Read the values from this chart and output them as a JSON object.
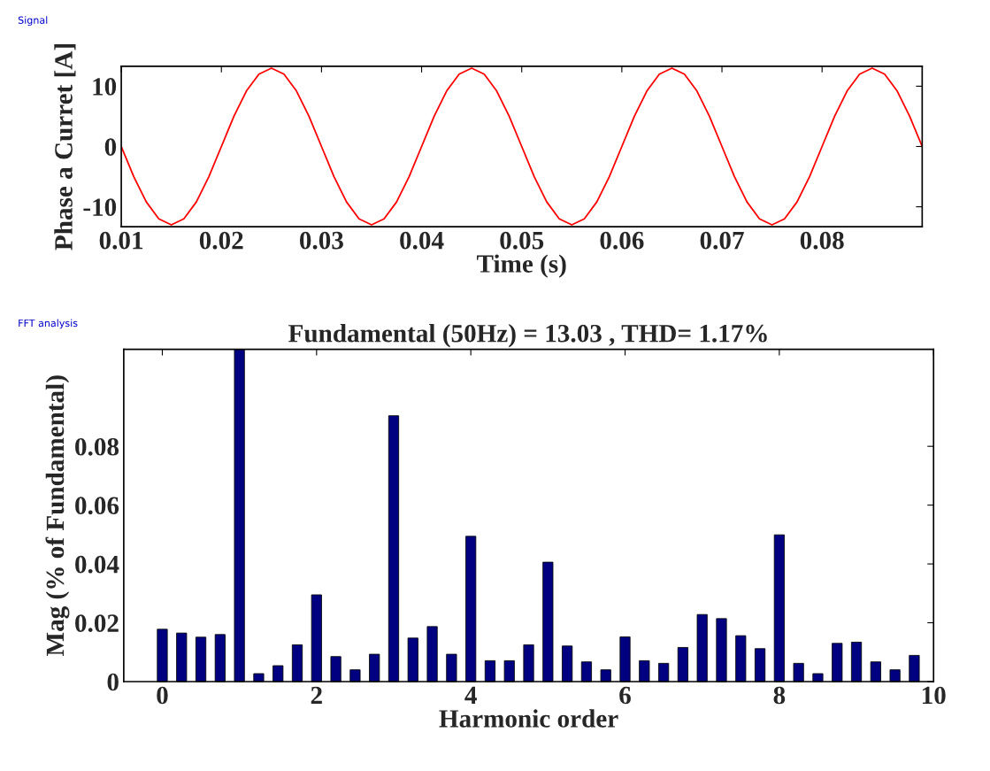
{
  "chart_data": [
    {
      "type": "line",
      "ylabel": "Phase a Curret [A]",
      "xlabel": "Time (s)",
      "annotations": [
        "Signal"
      ],
      "xlim": [
        0.01,
        0.09
      ],
      "xticks": [
        0.01,
        0.02,
        0.03,
        0.04,
        0.05,
        0.06,
        0.07,
        0.08
      ],
      "ylim": [
        -13.3,
        13.3
      ],
      "yticks": [
        -10,
        0,
        10
      ],
      "grid": false,
      "legend": false,
      "series": [
        {
          "color": "#ff0000",
          "x": [
            0.01,
            0.01125,
            0.0125,
            0.01375,
            0.015,
            0.01625,
            0.0175,
            0.01875,
            0.02,
            0.02125,
            0.0225,
            0.02375,
            0.025,
            0.02625,
            0.0275,
            0.02875,
            0.03,
            0.03125,
            0.0325,
            0.03375,
            0.035,
            0.03625,
            0.0375,
            0.03875,
            0.04,
            0.04125,
            0.0425,
            0.04375,
            0.045,
            0.04625,
            0.0475,
            0.04875,
            0.05,
            0.05125,
            0.0525,
            0.05375,
            0.055,
            0.05625,
            0.0575,
            0.05875,
            0.06,
            0.06125,
            0.0625,
            0.06375,
            0.065,
            0.06625,
            0.0675,
            0.06875,
            0.07,
            0.07125,
            0.0725,
            0.07375,
            0.075,
            0.07625,
            0.0775,
            0.07875,
            0.08,
            0.08125,
            0.0825,
            0.08375,
            0.085,
            0.08625,
            0.0875,
            0.08875,
            0.09
          ],
          "values": [
            0,
            -5.0,
            -9.2,
            -12.0,
            -13.0,
            -12.0,
            -9.2,
            -5.0,
            0,
            5.0,
            9.2,
            12.0,
            13.0,
            12.0,
            9.2,
            5.0,
            0,
            -5.0,
            -9.2,
            -12.0,
            -13.0,
            -12.0,
            -9.2,
            -5.0,
            0,
            5.0,
            9.2,
            12.0,
            13.0,
            12.0,
            9.2,
            5.0,
            0,
            -5.0,
            -9.2,
            -12.0,
            -13.0,
            -12.0,
            -9.2,
            -5.0,
            0,
            5.0,
            9.2,
            12.0,
            13.0,
            12.0,
            9.2,
            5.0,
            0,
            -5.0,
            -9.2,
            -12.0,
            -13.0,
            -12.0,
            -9.2,
            -5.0,
            0,
            5.0,
            9.2,
            12.0,
            13.0,
            12.0,
            9.2,
            5.0,
            0
          ]
        }
      ]
    },
    {
      "type": "bar",
      "title": "Fundamental (50Hz) = 13.03 , THD= 1.17%",
      "ylabel": "Mag (% of Fundamental)",
      "xlabel": "Harmonic order",
      "annotations": [
        "FFT analysis"
      ],
      "xlim": [
        -0.5,
        10
      ],
      "xticks": [
        0,
        2,
        4,
        6,
        8,
        10
      ],
      "ylim": [
        0,
        0.113
      ],
      "yticks": [
        0,
        0.02,
        0.04,
        0.06,
        0.08
      ],
      "grid": false,
      "legend": false,
      "series": [
        {
          "color": "#000080",
          "x": [
            0,
            0.25,
            0.5,
            0.75,
            1,
            1.25,
            1.5,
            1.75,
            2,
            2.25,
            2.5,
            2.75,
            3,
            3.25,
            3.5,
            3.75,
            4,
            4.25,
            4.5,
            4.75,
            5,
            5.25,
            5.5,
            5.75,
            6,
            6.25,
            6.5,
            6.75,
            7,
            7.25,
            7.5,
            7.75,
            8,
            8.25,
            8.5,
            8.75,
            9,
            9.25,
            9.5,
            9.75
          ],
          "values": [
            0.0178,
            0.0165,
            0.0151,
            0.016,
            0.113,
            0.0027,
            0.0054,
            0.0125,
            0.0295,
            0.0085,
            0.004,
            0.0093,
            0.0904,
            0.0148,
            0.0187,
            0.0093,
            0.0494,
            0.0071,
            0.0071,
            0.0125,
            0.0406,
            0.0121,
            0.0067,
            0.004,
            0.0152,
            0.0071,
            0.0062,
            0.0116,
            0.0228,
            0.0214,
            0.0156,
            0.0112,
            0.0499,
            0.0062,
            0.0027,
            0.013,
            0.0134,
            0.0067,
            0.004,
            0.0089
          ]
        }
      ]
    }
  ]
}
